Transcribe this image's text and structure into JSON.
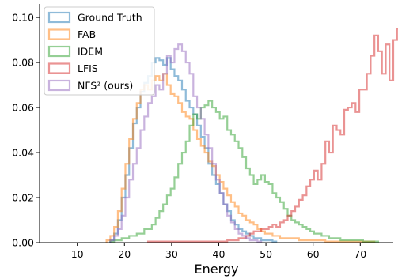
{
  "chart_data": {
    "type": "step-histogram",
    "xlabel": "Energy",
    "ylabel": "",
    "xlim": [
      2,
      77
    ],
    "ylim": [
      0,
      0.106
    ],
    "xticks": [
      10,
      20,
      30,
      40,
      50,
      60,
      70
    ],
    "yticks": [
      0.0,
      0.02,
      0.04,
      0.06,
      0.08,
      0.1
    ],
    "ytick_labels": [
      "0.00",
      "0.02",
      "0.04",
      "0.06",
      "0.08",
      "0.10"
    ],
    "bin_start": 5,
    "bin_width": 0.8,
    "legend_position": "top-left",
    "grid": false,
    "series": [
      {
        "name": "Ground Truth",
        "color": "#1f77b4",
        "start_bin": 15,
        "values": [
          0.001,
          0.004,
          0.01,
          0.02,
          0.03,
          0.042,
          0.053,
          0.06,
          0.067,
          0.071,
          0.074,
          0.08,
          0.082,
          0.081,
          0.079,
          0.082,
          0.077,
          0.074,
          0.072,
          0.068,
          0.063,
          0.06,
          0.057,
          0.052,
          0.047,
          0.042,
          0.035,
          0.03,
          0.026,
          0.022,
          0.017,
          0.014,
          0.01,
          0.008,
          0.006,
          0.005,
          0.004,
          0.003,
          0.002,
          0.002,
          0.001,
          0.001,
          0.001,
          0.0005
        ]
      },
      {
        "name": "FAB",
        "color": "#ff7f0e",
        "start_bin": 14,
        "values": [
          0.001,
          0.003,
          0.007,
          0.014,
          0.024,
          0.035,
          0.046,
          0.055,
          0.062,
          0.068,
          0.07,
          0.068,
          0.072,
          0.074,
          0.072,
          0.075,
          0.07,
          0.066,
          0.065,
          0.062,
          0.058,
          0.056,
          0.055,
          0.05,
          0.046,
          0.043,
          0.04,
          0.036,
          0.034,
          0.03,
          0.027,
          0.024,
          0.021,
          0.018,
          0.016,
          0.013,
          0.012,
          0.01,
          0.009,
          0.008,
          0.006,
          0.005,
          0.004,
          0.004,
          0.003,
          0.003,
          0.002,
          0.002,
          0.002,
          0.002,
          0.002,
          0.001,
          0.001,
          0.001,
          0.001,
          0.001,
          0.001,
          0.001,
          0.0005,
          0.0005,
          0.0005,
          0.0005,
          0.0005,
          0.0005,
          0.0005,
          0.0005,
          0.0005,
          0.0005,
          0.0005,
          0.0005,
          0.0005
        ]
      },
      {
        "name": "IDEM",
        "color": "#2ca02c",
        "start_bin": 15,
        "values": [
          0.0005,
          0.001,
          0.001,
          0.002,
          0.002,
          0.003,
          0.003,
          0.004,
          0.004,
          0.006,
          0.006,
          0.008,
          0.011,
          0.014,
          0.017,
          0.021,
          0.024,
          0.029,
          0.035,
          0.04,
          0.045,
          0.052,
          0.057,
          0.055,
          0.06,
          0.061,
          0.063,
          0.06,
          0.058,
          0.055,
          0.056,
          0.05,
          0.048,
          0.045,
          0.042,
          0.038,
          0.033,
          0.03,
          0.026,
          0.028,
          0.03,
          0.027,
          0.026,
          0.022,
          0.02,
          0.018,
          0.015,
          0.012,
          0.01,
          0.009,
          0.008,
          0.007,
          0.006,
          0.005,
          0.004,
          0.004,
          0.003,
          0.003,
          0.002,
          0.002,
          0.002,
          0.001,
          0.001,
          0.001,
          0.001,
          0.001,
          0.001,
          0.0005,
          0.0005,
          0.0005,
          0.0005
        ]
      },
      {
        "name": "LFIS",
        "color": "#d62728",
        "start_bin": 25,
        "values": [
          0.0005,
          0.0005,
          0.0005,
          0.0005,
          0.0005,
          0.0005,
          0.0005,
          0.0005,
          0.0005,
          0.0005,
          0.0005,
          0.0005,
          0.0005,
          0.0005,
          0.0005,
          0.0005,
          0.0005,
          0.0005,
          0.0005,
          0.0005,
          0.0005,
          0.001,
          0.001,
          0.001,
          0.002,
          0.002,
          0.003,
          0.004,
          0.005,
          0.005,
          0.006,
          0.006,
          0.007,
          0.008,
          0.007,
          0.009,
          0.01,
          0.012,
          0.014,
          0.016,
          0.019,
          0.021,
          0.025,
          0.028,
          0.032,
          0.028,
          0.035,
          0.045,
          0.04,
          0.052,
          0.05,
          0.048,
          0.059,
          0.06,
          0.062,
          0.058,
          0.068,
          0.068,
          0.075,
          0.083,
          0.092,
          0.085,
          0.075,
          0.088,
          0.072,
          0.09,
          0.095,
          0.103,
          0.1,
          0.095,
          0.08,
          0.08,
          0.0
        ]
      },
      {
        "name": "NFS² (ours)",
        "color": "#9467bd",
        "start_bin": 15,
        "values": [
          0.001,
          0.003,
          0.006,
          0.012,
          0.02,
          0.028,
          0.035,
          0.042,
          0.05,
          0.056,
          0.062,
          0.065,
          0.07,
          0.068,
          0.075,
          0.083,
          0.08,
          0.086,
          0.088,
          0.085,
          0.08,
          0.075,
          0.065,
          0.06,
          0.055,
          0.048,
          0.042,
          0.035,
          0.028,
          0.022,
          0.017,
          0.012,
          0.009,
          0.006,
          0.004,
          0.003,
          0.002,
          0.001,
          0.001,
          0.0005
        ]
      }
    ]
  }
}
